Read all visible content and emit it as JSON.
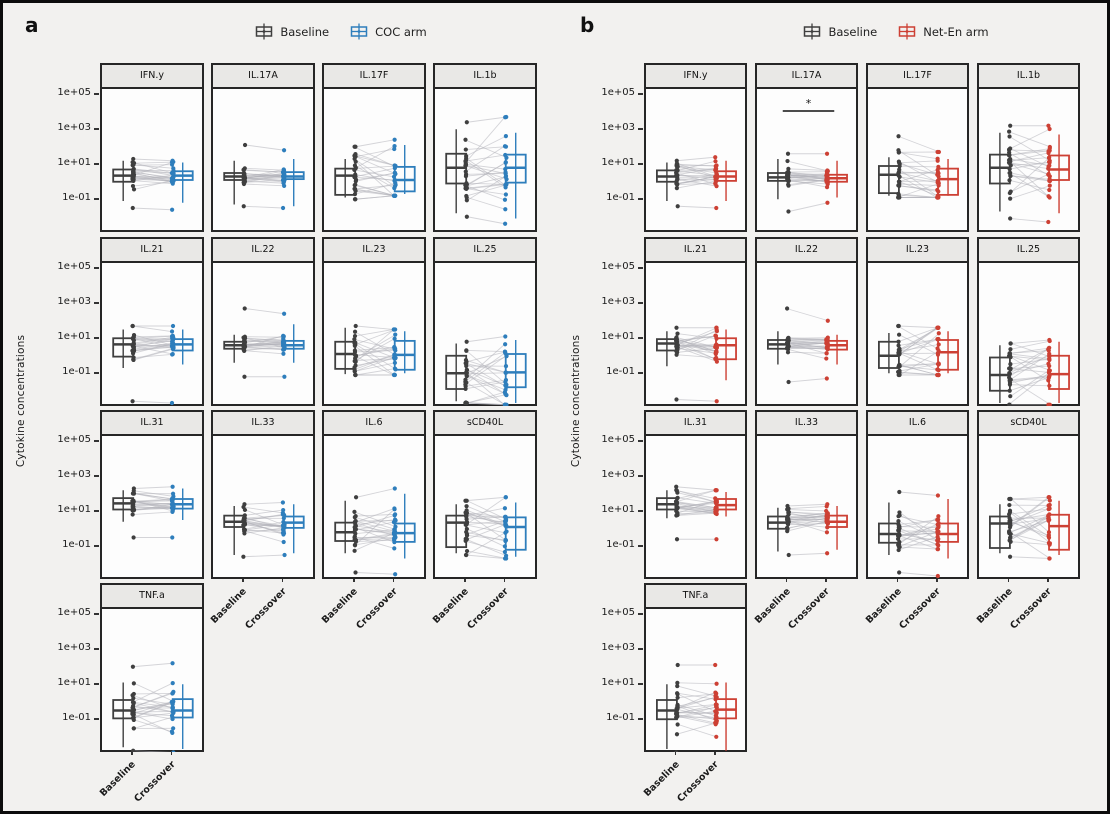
{
  "figure": {
    "background": "#f2f1ef",
    "border_color": "#0c0c0c"
  },
  "colors": {
    "baseline": "#3f3f3f",
    "coc_arm": "#2e7ebc",
    "neten_arm": "#cd4034",
    "pair_line": "#b3b3ba",
    "facet_header_bg": "#e9e8e6",
    "facet_border": "#262626"
  },
  "chart_data": [
    {
      "panel_label": "a",
      "type": "paired-boxplot-grid",
      "scale": "log10",
      "legend": [
        {
          "label": "Baseline",
          "color": "#3f3f3f"
        },
        {
          "label": "COC arm",
          "color": "#2e7ebc"
        }
      ],
      "x_categories": [
        "Baseline",
        "Crossover"
      ],
      "ylabel": "Cytokine concentrations",
      "yticks": [
        {
          "label": "1e+05",
          "value": 5
        },
        {
          "label": "1e+03",
          "value": 3
        },
        {
          "label": "1e+01",
          "value": 1
        },
        {
          "label": "1e-01",
          "value": -1
        }
      ],
      "ylim_log10": [
        -2.67,
        5.5
      ],
      "n_pairs_approx": 26,
      "significance": [],
      "facets": [
        {
          "name": "IFN.y",
          "baseline": {
            "med": 0.55,
            "q1": 0.2,
            "q3": 0.9,
            "whisk_lo": -0.9,
            "whisk_hi": 1.4,
            "pt_min": -1.3,
            "pt_max": 1.5
          },
          "crossover": {
            "med": 0.55,
            "q1": 0.3,
            "q3": 0.8,
            "whisk_lo": -1.0,
            "whisk_hi": 1.3,
            "pt_min": -1.4,
            "pt_max": 1.4
          }
        },
        {
          "name": "IL.17A",
          "baseline": {
            "med": 0.5,
            "q1": 0.3,
            "q3": 0.7,
            "whisk_lo": -1.1,
            "whisk_hi": 1.4,
            "pt_min": -1.2,
            "pt_max": 2.3
          },
          "crossover": {
            "med": 0.5,
            "q1": 0.35,
            "q3": 0.75,
            "whisk_lo": -1.2,
            "whisk_hi": 1.5,
            "pt_min": -1.3,
            "pt_max": 2.0
          }
        },
        {
          "name": "IL.17F",
          "baseline": {
            "med": 0.55,
            "q1": -0.55,
            "q3": 0.95,
            "whisk_lo": -0.7,
            "whisk_hi": 1.5,
            "pt_min": -0.8,
            "pt_max": 2.2
          },
          "crossover": {
            "med": 0.3,
            "q1": -0.35,
            "q3": 1.05,
            "whisk_lo": -0.5,
            "whisk_hi": 2.3,
            "pt_min": -0.6,
            "pt_max": 2.6
          }
        },
        {
          "name": "IL.1b",
          "baseline": {
            "med": 1.0,
            "q1": 0.1,
            "q3": 1.8,
            "whisk_lo": -1.6,
            "whisk_hi": 3.2,
            "pt_min": -1.8,
            "pt_max": 3.6
          },
          "crossover": {
            "med": 1.0,
            "q1": 0.15,
            "q3": 1.75,
            "whisk_lo": -1.9,
            "whisk_hi": 3.0,
            "pt_min": -2.2,
            "pt_max": 3.9
          }
        },
        {
          "name": "IL.21",
          "baseline": {
            "med": 0.85,
            "q1": 0.15,
            "q3": 1.2,
            "whisk_lo": -0.5,
            "whisk_hi": 1.7,
            "pt_min": -2.4,
            "pt_max": 1.9
          },
          "crossover": {
            "med": 0.85,
            "q1": 0.5,
            "q3": 1.15,
            "whisk_lo": -0.3,
            "whisk_hi": 1.7,
            "pt_min": -2.5,
            "pt_max": 1.9
          }
        },
        {
          "name": "IL.22",
          "baseline": {
            "med": 0.8,
            "q1": 0.6,
            "q3": 1.0,
            "whisk_lo": -0.2,
            "whisk_hi": 1.4,
            "pt_min": -1.0,
            "pt_max": 2.9
          },
          "crossover": {
            "med": 0.8,
            "q1": 0.6,
            "q3": 1.05,
            "whisk_lo": -0.2,
            "whisk_hi": 2.0,
            "pt_min": -1.0,
            "pt_max": 2.6
          }
        },
        {
          "name": "IL.23",
          "baseline": {
            "med": 0.3,
            "q1": -0.55,
            "q3": 1.0,
            "whisk_lo": -0.85,
            "whisk_hi": 1.8,
            "pt_min": -0.9,
            "pt_max": 1.9
          },
          "crossover": {
            "med": 0.25,
            "q1": -0.6,
            "q3": 1.05,
            "whisk_lo": -0.8,
            "whisk_hi": 1.6,
            "pt_min": -0.9,
            "pt_max": 1.7
          }
        },
        {
          "name": "IL.25",
          "baseline": {
            "med": -0.8,
            "q1": -1.7,
            "q3": 0.2,
            "whisk_lo": -2.4,
            "whisk_hi": 0.9,
            "pt_min": -2.5,
            "pt_max": 1.0
          },
          "crossover": {
            "med": -0.75,
            "q1": -1.6,
            "q3": 0.3,
            "whisk_lo": -2.5,
            "whisk_hi": 1.1,
            "pt_min": -2.6,
            "pt_max": 1.3
          }
        },
        {
          "name": "IL.31",
          "baseline": {
            "med": 1.65,
            "q1": 1.3,
            "q3": 1.95,
            "whisk_lo": 0.6,
            "whisk_hi": 2.4,
            "pt_min": -0.3,
            "pt_max": 2.5
          },
          "crossover": {
            "med": 1.6,
            "q1": 1.35,
            "q3": 1.9,
            "whisk_lo": 0.7,
            "whisk_hi": 2.5,
            "pt_min": -0.3,
            "pt_max": 2.6
          }
        },
        {
          "name": "IL.33",
          "baseline": {
            "med": 0.6,
            "q1": 0.3,
            "q3": 0.95,
            "whisk_lo": -1.3,
            "whisk_hi": 1.5,
            "pt_min": -1.4,
            "pt_max": 1.6
          },
          "crossover": {
            "med": 0.55,
            "q1": 0.25,
            "q3": 0.9,
            "whisk_lo": -1.2,
            "whisk_hi": 1.6,
            "pt_min": -1.3,
            "pt_max": 1.7
          }
        },
        {
          "name": "IL.6",
          "baseline": {
            "med": 0.0,
            "q1": -0.5,
            "q3": 0.55,
            "whisk_lo": -1.2,
            "whisk_hi": 1.8,
            "pt_min": -2.3,
            "pt_max": 2.0
          },
          "crossover": {
            "med": -0.05,
            "q1": -0.55,
            "q3": 0.5,
            "whisk_lo": -1.5,
            "whisk_hi": 2.2,
            "pt_min": -2.4,
            "pt_max": 2.5
          }
        },
        {
          "name": "sCD40L",
          "baseline": {
            "med": 0.55,
            "q1": -0.85,
            "q3": 0.95,
            "whisk_lo": -1.2,
            "whisk_hi": 1.6,
            "pt_min": -1.3,
            "pt_max": 1.8
          },
          "crossover": {
            "med": 0.3,
            "q1": -1.0,
            "q3": 0.85,
            "whisk_lo": -1.4,
            "whisk_hi": 1.7,
            "pt_min": -1.5,
            "pt_max": 2.0
          }
        },
        {
          "name": "TNF.a",
          "baseline": {
            "med": -0.3,
            "q1": -0.75,
            "q3": 0.3,
            "whisk_lo": -2.4,
            "whisk_hi": 1.3,
            "pt_min": -2.6,
            "pt_max": 2.2
          },
          "crossover": {
            "med": -0.3,
            "q1": -0.7,
            "q3": 0.35,
            "whisk_lo": -2.5,
            "whisk_hi": 1.2,
            "pt_min": -2.7,
            "pt_max": 2.4
          }
        }
      ]
    },
    {
      "panel_label": "b",
      "type": "paired-boxplot-grid",
      "scale": "log10",
      "legend": [
        {
          "label": "Baseline",
          "color": "#3f3f3f"
        },
        {
          "label": "Net-En arm",
          "color": "#cd4034"
        }
      ],
      "x_categories": [
        "Baseline",
        "Crossover"
      ],
      "ylabel": "Cytokine concentrations",
      "yticks": [
        {
          "label": "1e+05",
          "value": 5
        },
        {
          "label": "1e+03",
          "value": 3
        },
        {
          "label": "1e+01",
          "value": 1
        },
        {
          "label": "1e-01",
          "value": -1
        }
      ],
      "ylim_log10": [
        -2.67,
        5.5
      ],
      "n_pairs_approx": 26,
      "significance": [
        {
          "facet": "IL.17A",
          "label": "*"
        }
      ],
      "facets": [
        {
          "name": "IFN.y",
          "baseline": {
            "med": 0.5,
            "q1": 0.2,
            "q3": 0.85,
            "whisk_lo": -0.9,
            "whisk_hi": 1.3,
            "pt_min": -1.2,
            "pt_max": 1.4
          },
          "crossover": {
            "med": 0.5,
            "q1": 0.25,
            "q3": 0.8,
            "whisk_lo": -0.9,
            "whisk_hi": 1.4,
            "pt_min": -1.3,
            "pt_max": 1.6
          }
        },
        {
          "name": "IL.17A",
          "baseline": {
            "med": 0.45,
            "q1": 0.25,
            "q3": 0.7,
            "whisk_lo": -0.8,
            "whisk_hi": 1.5,
            "pt_min": -1.5,
            "pt_max": 1.8
          },
          "crossover": {
            "med": 0.4,
            "q1": 0.2,
            "q3": 0.6,
            "whisk_lo": -0.7,
            "whisk_hi": 1.4,
            "pt_min": -1.0,
            "pt_max": 1.8
          }
        },
        {
          "name": "IL.17F",
          "baseline": {
            "med": 0.6,
            "q1": -0.45,
            "q3": 1.1,
            "whisk_lo": -0.6,
            "whisk_hi": 1.6,
            "pt_min": -0.7,
            "pt_max": 2.8
          },
          "crossover": {
            "med": 0.35,
            "q1": -0.55,
            "q3": 0.95,
            "whisk_lo": -0.6,
            "whisk_hi": 1.5,
            "pt_min": -0.7,
            "pt_max": 1.9
          }
        },
        {
          "name": "IL.1b",
          "baseline": {
            "med": 1.0,
            "q1": 0.1,
            "q3": 1.75,
            "whisk_lo": -1.5,
            "whisk_hi": 3.0,
            "pt_min": -1.9,
            "pt_max": 3.4
          },
          "crossover": {
            "med": 0.9,
            "q1": 0.3,
            "q3": 1.7,
            "whisk_lo": -1.6,
            "whisk_hi": 2.9,
            "pt_min": -2.1,
            "pt_max": 3.4
          }
        },
        {
          "name": "IL.21",
          "baseline": {
            "med": 0.9,
            "q1": 0.5,
            "q3": 1.15,
            "whisk_lo": -0.4,
            "whisk_hi": 1.6,
            "pt_min": -2.3,
            "pt_max": 1.8
          },
          "crossover": {
            "med": 0.8,
            "q1": 0.0,
            "q3": 1.2,
            "whisk_lo": -1.2,
            "whisk_hi": 1.7,
            "pt_min": -2.4,
            "pt_max": 1.8
          }
        },
        {
          "name": "IL.22",
          "baseline": {
            "med": 0.85,
            "q1": 0.6,
            "q3": 1.1,
            "whisk_lo": -0.3,
            "whisk_hi": 1.6,
            "pt_min": -1.3,
            "pt_max": 2.9
          },
          "crossover": {
            "med": 0.8,
            "q1": 0.55,
            "q3": 1.05,
            "whisk_lo": -0.3,
            "whisk_hi": 1.4,
            "pt_min": -1.1,
            "pt_max": 2.2
          }
        },
        {
          "name": "IL.23",
          "baseline": {
            "med": 0.2,
            "q1": -0.5,
            "q3": 1.0,
            "whisk_lo": -0.8,
            "whisk_hi": 1.5,
            "pt_min": -0.9,
            "pt_max": 1.9
          },
          "crossover": {
            "med": 0.4,
            "q1": -0.6,
            "q3": 1.1,
            "whisk_lo": -0.8,
            "whisk_hi": 1.6,
            "pt_min": -0.9,
            "pt_max": 1.8
          }
        },
        {
          "name": "IL.25",
          "baseline": {
            "med": -0.9,
            "q1": -1.8,
            "q3": 0.1,
            "whisk_lo": -2.5,
            "whisk_hi": 0.8,
            "pt_min": -2.6,
            "pt_max": 0.9
          },
          "crossover": {
            "med": -0.85,
            "q1": -1.7,
            "q3": 0.2,
            "whisk_lo": -2.5,
            "whisk_hi": 1.0,
            "pt_min": -2.6,
            "pt_max": 1.1
          }
        },
        {
          "name": "IL.31",
          "baseline": {
            "med": 1.6,
            "q1": 1.3,
            "q3": 1.95,
            "whisk_lo": 0.8,
            "whisk_hi": 2.4,
            "pt_min": -0.4,
            "pt_max": 2.6
          },
          "crossover": {
            "med": 1.55,
            "q1": 1.3,
            "q3": 1.9,
            "whisk_lo": 0.9,
            "whisk_hi": 2.3,
            "pt_min": -0.4,
            "pt_max": 2.4
          }
        },
        {
          "name": "IL.33",
          "baseline": {
            "med": 0.55,
            "q1": 0.2,
            "q3": 0.9,
            "whisk_lo": -1.1,
            "whisk_hi": 1.4,
            "pt_min": -1.3,
            "pt_max": 1.5
          },
          "crossover": {
            "med": 0.6,
            "q1": 0.3,
            "q3": 0.95,
            "whisk_lo": -1.0,
            "whisk_hi": 1.5,
            "pt_min": -1.2,
            "pt_max": 1.6
          }
        },
        {
          "name": "IL.6",
          "baseline": {
            "med": -0.1,
            "q1": -0.6,
            "q3": 0.5,
            "whisk_lo": -1.3,
            "whisk_hi": 1.7,
            "pt_min": -2.3,
            "pt_max": 2.3
          },
          "crossover": {
            "med": -0.1,
            "q1": -0.55,
            "q3": 0.5,
            "whisk_lo": -1.5,
            "whisk_hi": 1.9,
            "pt_min": -2.5,
            "pt_max": 2.1
          }
        },
        {
          "name": "sCD40L",
          "baseline": {
            "med": 0.5,
            "q1": -0.9,
            "q3": 0.9,
            "whisk_lo": -1.2,
            "whisk_hi": 1.6,
            "pt_min": -1.4,
            "pt_max": 1.9
          },
          "crossover": {
            "med": 0.35,
            "q1": -1.0,
            "q3": 1.0,
            "whisk_lo": -1.3,
            "whisk_hi": 1.8,
            "pt_min": -1.5,
            "pt_max": 2.0
          }
        },
        {
          "name": "TNF.a",
          "baseline": {
            "med": -0.3,
            "q1": -0.8,
            "q3": 0.3,
            "whisk_lo": -2.5,
            "whisk_hi": 1.2,
            "pt_min": -2.7,
            "pt_max": 2.3
          },
          "crossover": {
            "med": -0.25,
            "q1": -0.75,
            "q3": 0.35,
            "whisk_lo": -2.6,
            "whisk_hi": 1.3,
            "pt_min": -2.8,
            "pt_max": 2.3
          }
        }
      ]
    }
  ]
}
